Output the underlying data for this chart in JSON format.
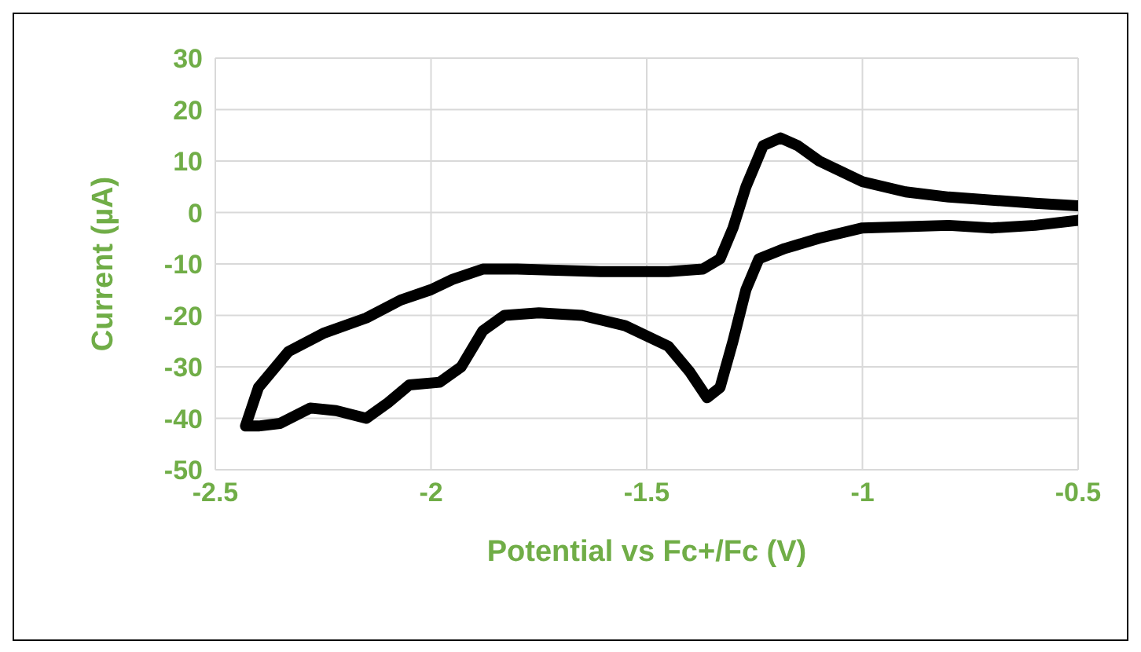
{
  "chart_data": {
    "type": "line",
    "xlabel": "Potential vs Fc+/Fc (V)",
    "ylabel": "Current (µA)",
    "xlim": [
      -2.5,
      -0.5
    ],
    "xticks": [
      -2.5,
      -2,
      -1.5,
      -1,
      -0.5
    ],
    "ylim": [
      -50,
      30
    ],
    "yticks": [
      -50,
      -40,
      -30,
      -20,
      -10,
      0,
      10,
      20,
      30
    ],
    "grid": true,
    "marker": "none",
    "line_style": "solid",
    "series": [
      {
        "color": "#000000",
        "x": [
          -0.5,
          -0.6,
          -0.8,
          -0.9,
          -1.0,
          -1.1,
          -1.15,
          -1.19,
          -1.23,
          -1.27,
          -1.3,
          -1.33,
          -1.37,
          -1.45,
          -1.6,
          -1.8,
          -1.88,
          -1.95,
          -2.0,
          -2.07,
          -2.15,
          -2.25,
          -2.33,
          -2.4,
          -2.43,
          -2.4,
          -2.35,
          -2.28,
          -2.22,
          -2.15,
          -2.1,
          -2.05,
          -1.98,
          -1.93,
          -1.88,
          -1.83,
          -1.75,
          -1.65,
          -1.55,
          -1.45,
          -1.4,
          -1.36,
          -1.33,
          -1.3,
          -1.27,
          -1.24,
          -1.18,
          -1.1,
          -1.0,
          -0.8,
          -0.7,
          -0.6,
          -0.5
        ],
        "values": [
          1.3,
          1.8,
          3,
          4,
          6,
          10,
          13,
          14.5,
          13,
          5,
          -3,
          -9,
          -11,
          -11.5,
          -11.5,
          -11,
          -11,
          -13,
          -15,
          -17,
          -20.5,
          -23.5,
          -27,
          -34,
          -41.5,
          -41.5,
          -41,
          -38,
          -38.5,
          -40,
          -37,
          -33.5,
          -33,
          -30,
          -23,
          -20,
          -19.5,
          -20,
          -22,
          -26,
          -31,
          -36,
          -34,
          -25,
          -15,
          -9,
          -7,
          -5,
          -3,
          -2.5,
          -3,
          -2.5,
          -1.5
        ]
      }
    ]
  }
}
